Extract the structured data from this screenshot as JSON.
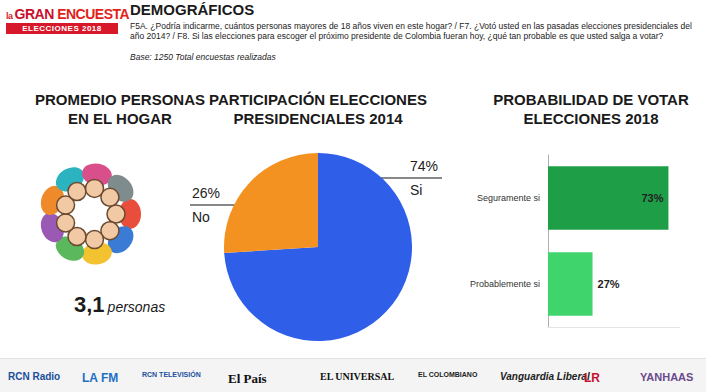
{
  "header": {
    "logo": [
      "la",
      "GRAN",
      "ENCUESTA",
      "ELECCIONES 2018"
    ],
    "title": "DEMOGRÁFICOS",
    "question": "F5A. ¿Podría indicarme, cuántos personas mayores de 18 años viven en este hogar? / F7. ¿Votó usted en las pasadas elecciones presidenciales del año 2014? / F8. Si las elecciones para escoger el próximo presidente de Colombia fueran hoy, ¿qué tan probable es que usted salga a votar?",
    "base": "Base: 1250 Total encuestas realizadas"
  },
  "household": {
    "title": "PROMEDIO PERSONAS\nEN EL HOGAR",
    "value": "3,1",
    "unit": "personas"
  },
  "chart_data": [
    {
      "type": "pie",
      "title": "PARTICIPACIÓN ELECCIONES\nPRESIDENCIALES 2014",
      "categories": [
        "Si",
        "No"
      ],
      "values": [
        74,
        26
      ],
      "value_labels": [
        "74%",
        "26%"
      ],
      "colors": [
        "#2f5ee8",
        "#f39220"
      ],
      "data_labels": true
    },
    {
      "type": "bar",
      "title": "PROBABILIDAD DE VOTAR\nELECCIONES 2018",
      "orientation": "horizontal",
      "categories": [
        "Seguramente si",
        "Probablemente si"
      ],
      "values": [
        73,
        27
      ],
      "value_labels": [
        "73%",
        "27%"
      ],
      "colors": [
        "#1f9e48",
        "#3fd56c"
      ],
      "data_labels": true,
      "xlim": [
        0,
        80
      ],
      "xticks": [
        0,
        80
      ],
      "tick_labels": "y",
      "grid": false
    }
  ],
  "footer": {
    "logos": [
      "RCN Radio",
      "LA FM",
      "RCN TELEVISIÓN",
      "El País",
      "EL UNIVERSAL",
      "EL COLOMBIANO",
      "Vanguardia Liberal",
      "LR",
      "YANHAAS"
    ]
  }
}
